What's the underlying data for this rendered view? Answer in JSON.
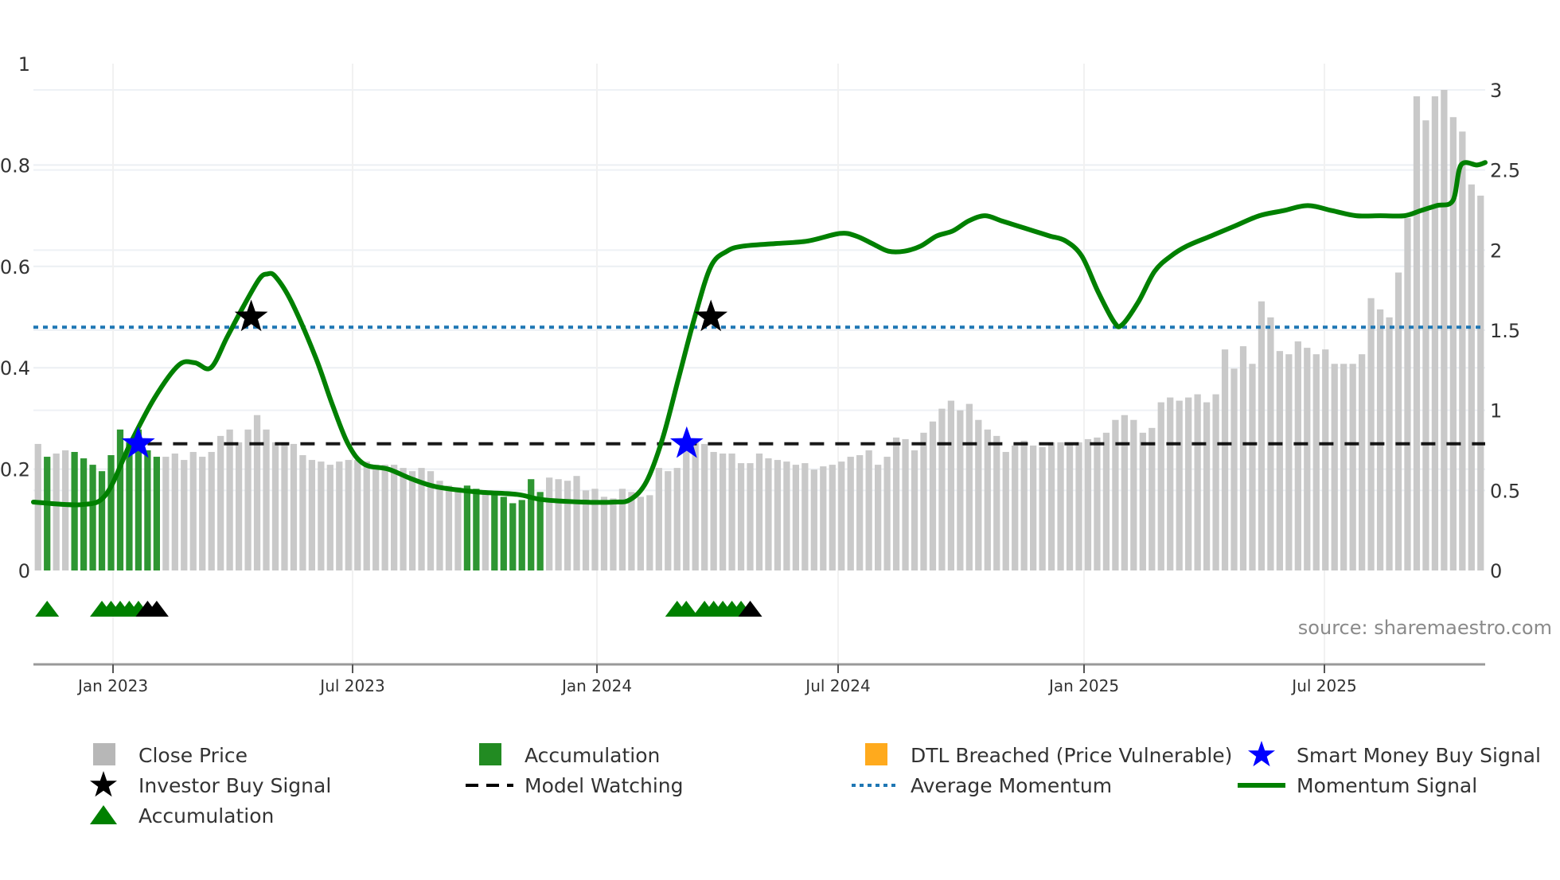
{
  "chart_data": {
    "type": "bar",
    "title": "",
    "source_note": "source: sharemaestro.com",
    "x_ticks": [
      "Jan 2023",
      "Jul 2023",
      "Jan 2024",
      "Jul 2024",
      "Jan 2025",
      "Jul 2025"
    ],
    "y_left": {
      "ticks": [
        "0",
        "0.2",
        "0.4",
        "0.6",
        "0.8",
        "1"
      ],
      "range": [
        0,
        1
      ]
    },
    "y_right": {
      "ticks": [
        "0",
        "0.5",
        "1",
        "1.5",
        "2",
        "2.5",
        "3"
      ],
      "range": [
        0,
        3
      ]
    },
    "series": [
      {
        "name": "Close Price",
        "type": "bar",
        "axis": "right",
        "color": "#bdbdbd",
        "values": [
          0.79,
          0.71,
          0.73,
          0.75,
          0.74,
          0.7,
          0.66,
          0.62,
          0.72,
          0.88,
          0.8,
          0.88,
          0.75,
          0.71,
          0.71,
          0.73,
          0.69,
          0.74,
          0.71,
          0.74,
          0.84,
          0.88,
          0.8,
          0.88,
          0.97,
          0.88,
          0.8,
          0.8,
          0.79,
          0.72,
          0.69,
          0.68,
          0.66,
          0.68,
          0.69,
          0.69,
          0.68,
          0.66,
          0.66,
          0.66,
          0.64,
          0.62,
          0.64,
          0.62,
          0.56,
          0.53,
          0.52,
          0.53,
          0.51,
          0.49,
          0.48,
          0.46,
          0.42,
          0.44,
          0.57,
          0.49,
          0.58,
          0.57,
          0.56,
          0.59,
          0.5,
          0.51,
          0.46,
          0.45,
          0.51,
          0.49,
          0.46,
          0.47,
          0.64,
          0.62,
          0.64,
          0.79,
          0.8,
          0.79,
          0.74,
          0.73,
          0.73,
          0.67,
          0.67,
          0.73,
          0.7,
          0.69,
          0.68,
          0.66,
          0.67,
          0.63,
          0.65,
          0.66,
          0.68,
          0.71,
          0.72,
          0.75,
          0.66,
          0.71,
          0.83,
          0.82,
          0.75,
          0.86,
          0.93,
          1.01,
          1.06,
          1.0,
          1.04,
          0.94,
          0.88,
          0.84,
          0.74,
          0.78,
          0.81,
          0.78,
          0.77,
          0.8,
          0.8,
          0.79,
          0.8,
          0.82,
          0.83,
          0.86,
          0.94,
          0.97,
          0.94,
          0.86,
          0.89,
          1.05,
          1.08,
          1.06,
          1.08,
          1.1,
          1.05,
          1.1,
          1.38,
          1.26,
          1.4,
          1.29,
          1.68,
          1.58,
          1.37,
          1.35,
          1.43,
          1.39,
          1.35,
          1.38,
          1.29,
          1.29,
          1.29,
          1.35,
          1.7,
          1.63,
          1.58,
          1.86,
          2.2,
          2.96,
          2.81,
          2.96,
          3.0,
          2.83,
          2.74,
          2.41,
          2.34
        ],
        "accumulation_highlight_indices": [
          1,
          4,
          5,
          6,
          7,
          8,
          9,
          10,
          11,
          12,
          13,
          47,
          48,
          50,
          51,
          52,
          53,
          54,
          55
        ]
      },
      {
        "name": "Momentum Signal",
        "type": "line",
        "axis": "left",
        "color": "#008000",
        "points": [
          [
            0,
            0.135
          ],
          [
            6,
            0.13
          ],
          [
            9,
            0.15
          ],
          [
            12,
            0.25
          ],
          [
            15,
            0.34
          ],
          [
            18,
            0.405
          ],
          [
            20,
            0.41
          ],
          [
            22,
            0.4
          ],
          [
            24,
            0.46
          ],
          [
            26,
            0.52
          ],
          [
            28,
            0.575
          ],
          [
            29,
            0.585
          ],
          [
            30,
            0.58
          ],
          [
            32,
            0.53
          ],
          [
            35,
            0.42
          ],
          [
            37,
            0.33
          ],
          [
            39,
            0.25
          ],
          [
            41,
            0.21
          ],
          [
            44,
            0.2
          ],
          [
            47,
            0.18
          ],
          [
            50,
            0.165
          ],
          [
            55,
            0.155
          ],
          [
            60,
            0.15
          ],
          [
            63,
            0.14
          ],
          [
            68,
            0.135
          ],
          [
            72,
            0.135
          ],
          [
            74,
            0.14
          ],
          [
            76,
            0.175
          ],
          [
            78,
            0.26
          ],
          [
            80,
            0.38
          ],
          [
            82,
            0.5
          ],
          [
            84,
            0.6
          ],
          [
            86,
            0.63
          ],
          [
            88,
            0.64
          ],
          [
            92,
            0.645
          ],
          [
            96,
            0.65
          ],
          [
            100,
            0.665
          ],
          [
            102,
            0.66
          ],
          [
            104,
            0.645
          ],
          [
            106,
            0.63
          ],
          [
            108,
            0.63
          ],
          [
            110,
            0.64
          ],
          [
            112,
            0.66
          ],
          [
            114,
            0.67
          ],
          [
            116,
            0.69
          ],
          [
            118,
            0.7
          ],
          [
            120,
            0.69
          ],
          [
            122,
            0.68
          ],
          [
            124,
            0.67
          ],
          [
            126,
            0.66
          ],
          [
            128,
            0.65
          ],
          [
            130,
            0.62
          ],
          [
            132,
            0.55
          ],
          [
            134,
            0.49
          ],
          [
            135,
            0.485
          ],
          [
            137,
            0.53
          ],
          [
            139,
            0.59
          ],
          [
            141,
            0.62
          ],
          [
            143,
            0.64
          ],
          [
            146,
            0.66
          ],
          [
            149,
            0.68
          ],
          [
            152,
            0.7
          ],
          [
            155,
            0.71
          ],
          [
            158,
            0.72
          ],
          [
            161,
            0.71
          ],
          [
            164,
            0.7
          ],
          [
            167,
            0.7
          ],
          [
            170,
            0.7
          ],
          [
            172,
            0.71
          ],
          [
            174,
            0.72
          ],
          [
            176,
            0.73
          ],
          [
            177,
            0.8
          ],
          [
            179,
            0.8
          ],
          [
            180,
            0.805
          ]
        ]
      },
      {
        "name": "Average Momentum",
        "type": "hline",
        "axis": "left",
        "value": 0.48,
        "color": "#1f77b4"
      },
      {
        "name": "Model Watching",
        "type": "hline",
        "axis": "left",
        "value": 0.25,
        "start_index": 12,
        "color": "#000000"
      },
      {
        "name": "Investor Buy Signal",
        "type": "scatter",
        "marker": "star",
        "color": "#000000",
        "points": [
          [
            27,
            0.5
          ],
          [
            84,
            0.5
          ]
        ]
      },
      {
        "name": "Smart Money Buy Signal",
        "type": "scatter",
        "marker": "star",
        "color": "#0000ff",
        "points": [
          [
            13,
            0.25
          ],
          [
            81,
            0.25
          ]
        ]
      },
      {
        "name": "Accumulation",
        "type": "scatter",
        "marker": "triangle",
        "color": "#008000",
        "indices": [
          1,
          7,
          8,
          9,
          10,
          11,
          70,
          71,
          73,
          74,
          75,
          76,
          77
        ]
      },
      {
        "name": "Accumulation (confirmed)",
        "type": "scatter",
        "marker": "triangle",
        "color": "#000000",
        "indices": [
          12,
          13,
          78
        ]
      }
    ],
    "legend": [
      {
        "label": "Close Price",
        "symbol": "square",
        "color": "#b7b7b7"
      },
      {
        "label": "Accumulation",
        "symbol": "square",
        "color": "#228b22"
      },
      {
        "label": "DTL Breached (Price Vulnerable)",
        "symbol": "square",
        "color": "#ffaa1d"
      },
      {
        "label": "Smart Money Buy Signal",
        "symbol": "star",
        "color": "#0000ff"
      },
      {
        "label": "Investor Buy Signal",
        "symbol": "star",
        "color": "#000000"
      },
      {
        "label": "Model Watching",
        "symbol": "dash",
        "color": "#000000"
      },
      {
        "label": "Average Momentum",
        "symbol": "dot",
        "color": "#1f77b4"
      },
      {
        "label": "Momentum Signal",
        "symbol": "line",
        "color": "#008000"
      },
      {
        "label": "Accumulation",
        "symbol": "triangle",
        "color": "#008000"
      }
    ]
  }
}
